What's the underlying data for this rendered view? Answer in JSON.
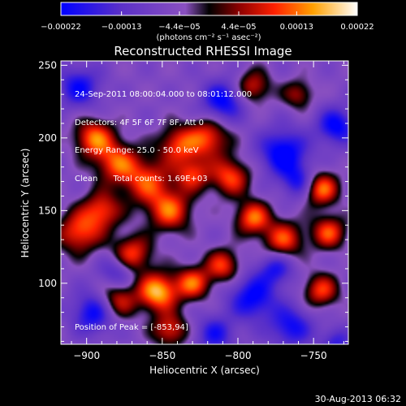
{
  "chart_data": {
    "type": "heatmap",
    "title": "Reconstructed RHESSI Image",
    "xlabel": "Heliocentric X (arcsec)",
    "ylabel": "Heliocentric Y (arcsec)",
    "xlim": [
      -917,
      -727
    ],
    "ylim": [
      58,
      253
    ],
    "x_ticks": [
      -900,
      -850,
      -800,
      -750
    ],
    "y_ticks": [
      100,
      150,
      200,
      250
    ],
    "x_tick_labels": [
      "−900",
      "−850",
      "−800",
      "−750"
    ],
    "y_tick_labels": [
      "100",
      "150",
      "200",
      "250"
    ],
    "colorbar": {
      "range": [
        -0.00022,
        0.00022
      ],
      "tick_values": [
        -0.00022,
        -0.00013,
        -4.4e-05,
        4.4e-05,
        0.00013,
        0.00022
      ],
      "tick_labels": [
        "−0.00022",
        "−0.00013",
        "−4.4e−05",
        "4.4e−05",
        "0.00013",
        "0.00022"
      ],
      "unit_label": "(photons cm⁻² s⁻¹ asec⁻²)"
    },
    "annotations": [
      "24-Sep-2011 08:00:04.000 to 08:01:12.000",
      "Detectors: 4F 5F 6F 7F 8F, Att 0",
      "Energy Range: 25.0 - 50.0 keV",
      "Clean      Total counts: 1.69E+03"
    ],
    "peak_label": "Position of Peak = [-853,94]",
    "peak": [
      -853,
      94
    ],
    "blobs": [
      {
        "x": -895,
        "y": 200,
        "v": 1.0,
        "s": 9
      },
      {
        "x": -880,
        "y": 183,
        "v": 0.9,
        "s": 10
      },
      {
        "x": -860,
        "y": 170,
        "v": 0.85,
        "s": 11
      },
      {
        "x": -840,
        "y": 195,
        "v": 0.8,
        "s": 9
      },
      {
        "x": -820,
        "y": 200,
        "v": 0.9,
        "s": 10
      },
      {
        "x": -830,
        "y": 175,
        "v": 0.8,
        "s": 8
      },
      {
        "x": -805,
        "y": 173,
        "v": 0.9,
        "s": 9
      },
      {
        "x": -845,
        "y": 150,
        "v": 0.95,
        "s": 10
      },
      {
        "x": -905,
        "y": 135,
        "v": 0.9,
        "s": 10
      },
      {
        "x": -890,
        "y": 150,
        "v": 0.85,
        "s": 9
      },
      {
        "x": -870,
        "y": 120,
        "v": 0.9,
        "s": 9
      },
      {
        "x": -853,
        "y": 94,
        "v": 1.25,
        "s": 9
      },
      {
        "x": -830,
        "y": 100,
        "v": 0.95,
        "s": 8
      },
      {
        "x": -810,
        "y": 112,
        "v": 0.85,
        "s": 8
      },
      {
        "x": -880,
        "y": 88,
        "v": 0.8,
        "s": 9
      },
      {
        "x": -845,
        "y": 68,
        "v": 0.8,
        "s": 8
      },
      {
        "x": -790,
        "y": 145,
        "v": 1.0,
        "s": 8
      },
      {
        "x": -770,
        "y": 130,
        "v": 0.9,
        "s": 9
      },
      {
        "x": -745,
        "y": 165,
        "v": 1.05,
        "s": 8
      },
      {
        "x": -740,
        "y": 135,
        "v": 0.9,
        "s": 8
      },
      {
        "x": -745,
        "y": 95,
        "v": 0.85,
        "s": 8
      },
      {
        "x": -790,
        "y": 235,
        "v": 0.75,
        "s": 8
      },
      {
        "x": -760,
        "y": 230,
        "v": 0.6,
        "s": 7
      },
      {
        "x": -810,
        "y": 225,
        "v": -0.9,
        "s": 10
      },
      {
        "x": -770,
        "y": 190,
        "v": -1.0,
        "s": 11
      },
      {
        "x": -735,
        "y": 208,
        "v": -0.9,
        "s": 9
      },
      {
        "x": -760,
        "y": 170,
        "v": -0.7,
        "s": 8
      },
      {
        "x": -905,
        "y": 235,
        "v": -0.8,
        "s": 10
      },
      {
        "x": -895,
        "y": 80,
        "v": -0.9,
        "s": 10
      },
      {
        "x": -790,
        "y": 90,
        "v": -0.9,
        "s": 11
      },
      {
        "x": -765,
        "y": 70,
        "v": -0.8,
        "s": 10
      },
      {
        "x": -815,
        "y": 65,
        "v": -0.7,
        "s": 9
      },
      {
        "x": -880,
        "y": 108,
        "v": -0.6,
        "s": 8
      },
      {
        "x": -775,
        "y": 110,
        "v": -0.7,
        "s": 8
      },
      {
        "x": -735,
        "y": 60,
        "v": -0.6,
        "s": 7
      }
    ]
  },
  "footer": {
    "timestamp": "30-Aug-2013 06:32"
  }
}
